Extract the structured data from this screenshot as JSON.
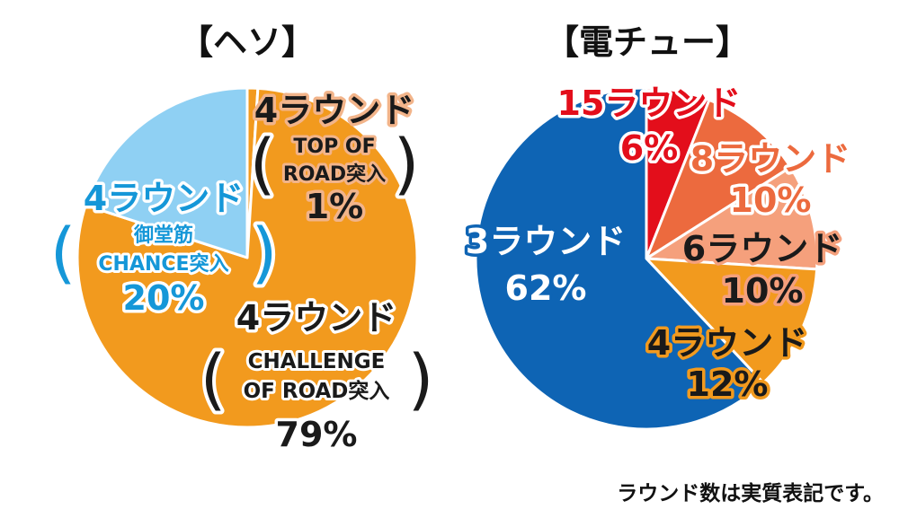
{
  "footnote": "ラウンド数は実質表記です。",
  "chart_data": [
    {
      "type": "pie",
      "title": "【ヘソ】",
      "slices": [
        {
          "label": "4ラウンド",
          "sublabel": [
            "TOP OF",
            "ROAD突入"
          ],
          "value": 1,
          "value_label": "1%",
          "color": "#f29a1e",
          "label_color": "#1a1a1a",
          "outline": "#f2b48a",
          "parens": true
        },
        {
          "label": "4ラウンド",
          "sublabel": [
            "CHALLENGE",
            "OF ROAD突入"
          ],
          "value": 79,
          "value_label": "79%",
          "color": "#f29a1e",
          "label_color": "#1a1a1a",
          "outline": "#ffffff",
          "parens": true
        },
        {
          "label": "4ラウンド",
          "sublabel": [
            "御堂筋",
            "CHANCE突入"
          ],
          "value": 20,
          "value_label": "20%",
          "color": "#8fd0f3",
          "label_color": "#1597d8",
          "outline": "#ffffff",
          "parens": true
        }
      ]
    },
    {
      "type": "pie",
      "title": "【電チュー】",
      "slices": [
        {
          "label": "15ラウンド",
          "value": 6,
          "value_label": "6%",
          "color": "#e30e1b",
          "label_color": "#e30e1b",
          "outline": "#ffffff"
        },
        {
          "label": "8ラウンド",
          "value": 10,
          "value_label": "10%",
          "color": "#ec6a3e",
          "label_color": "#ec6a3e",
          "outline": "#ffffff"
        },
        {
          "label": "6ラウンド",
          "value": 10,
          "value_label": "10%",
          "color": "#f5a07c",
          "label_color": "#1a1a1a",
          "outline": "#f5a07c"
        },
        {
          "label": "4ラウンド",
          "value": 12,
          "value_label": "12%",
          "color": "#f29a1e",
          "label_color": "#1a1a1a",
          "outline": "#f29a1e"
        },
        {
          "label": "3ラウンド",
          "value": 62,
          "value_label": "62%",
          "color": "#0e64b4",
          "label_color": "#ffffff",
          "outline": "#0e64b4"
        }
      ]
    }
  ]
}
